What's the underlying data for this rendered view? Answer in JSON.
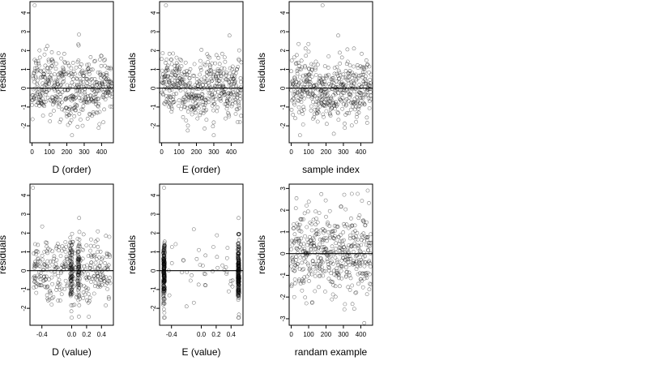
{
  "chart_data": [
    {
      "type": "scatter",
      "xlabel": "D (order)",
      "ylabel": "residuals",
      "xlim": [
        -12,
        468
      ],
      "ylim": [
        -2.9,
        4.6
      ],
      "xticks": [
        0,
        100,
        200,
        300,
        400
      ],
      "xtick_labels": [
        "0",
        "100",
        "200",
        "300",
        "400"
      ],
      "yticks": [
        -2,
        -1,
        0,
        1,
        2,
        3,
        4
      ],
      "ytick_labels": [
        "-2",
        "-1",
        "0",
        "1",
        "2",
        "3",
        "4"
      ],
      "hline": 0,
      "generator": {
        "kind": "index",
        "n": 460,
        "seed": 11
      },
      "outliers": [
        [
          15,
          4.4
        ],
        [
          270,
          2.85
        ],
        [
          230,
          -2.5
        ]
      ],
      "cluster": [
        [
          40,
          -0.6
        ],
        [
          45,
          -0.65
        ],
        [
          50,
          -0.7
        ],
        [
          55,
          -0.8
        ],
        [
          60,
          -0.85
        ],
        [
          65,
          -0.9
        ],
        [
          70,
          -0.95
        ]
      ]
    },
    {
      "type": "scatter",
      "xlabel": "E (order)",
      "ylabel": "residuals",
      "xlim": [
        -12,
        468
      ],
      "ylim": [
        -2.9,
        4.6
      ],
      "xticks": [
        0,
        100,
        200,
        300,
        400
      ],
      "xtick_labels": [
        "0",
        "100",
        "200",
        "300",
        "400"
      ],
      "yticks": [
        -2,
        -1,
        0,
        1,
        2,
        3,
        4
      ],
      "ytick_labels": [
        "-2",
        "-1",
        "0",
        "1",
        "2",
        "3",
        "4"
      ],
      "hline": 0,
      "generator": {
        "kind": "index",
        "n": 460,
        "seed": 23
      },
      "outliers": [
        [
          25,
          4.4
        ],
        [
          390,
          2.8
        ],
        [
          300,
          -2.5
        ]
      ],
      "cluster": [
        [
          30,
          -0.6
        ],
        [
          35,
          -0.7
        ],
        [
          40,
          -0.75
        ],
        [
          45,
          -0.8
        ],
        [
          50,
          -0.9
        ],
        [
          55,
          -1.0
        ],
        [
          60,
          -1.1
        ]
      ]
    },
    {
      "type": "scatter",
      "xlabel": "sample index",
      "ylabel": "residuals",
      "xlim": [
        -12,
        468
      ],
      "ylim": [
        -2.9,
        4.6
      ],
      "xticks": [
        0,
        100,
        200,
        300,
        400
      ],
      "xtick_labels": [
        "0",
        "100",
        "200",
        "300",
        "400"
      ],
      "yticks": [
        -2,
        -1,
        0,
        1,
        2,
        3,
        4
      ],
      "ytick_labels": [
        "-2",
        "-1",
        "0",
        "1",
        "2",
        "3",
        "4"
      ],
      "hline": 0,
      "generator": {
        "kind": "index",
        "n": 460,
        "seed": 37
      },
      "outliers": [
        [
          180,
          4.4
        ],
        [
          270,
          2.8
        ],
        [
          50,
          -2.5
        ]
      ],
      "cluster": [
        [
          170,
          -0.75
        ],
        [
          175,
          -0.8
        ],
        [
          180,
          -0.85
        ],
        [
          185,
          -0.9
        ],
        [
          190,
          -0.9
        ],
        [
          195,
          -0.95
        ]
      ]
    },
    {
      "type": "scatter",
      "xlabel": "D (value)",
      "ylabel": "residuals",
      "xlim": [
        -0.56,
        0.56
      ],
      "ylim": [
        -2.9,
        4.6
      ],
      "xticks": [
        -0.4,
        0.0,
        0.2,
        0.4
      ],
      "xtick_labels": [
        "-0.4",
        "0.0",
        "0.2",
        "0.4"
      ],
      "yticks": [
        -2,
        -1,
        0,
        1,
        2,
        3,
        4
      ],
      "ytick_labels": [
        "-2",
        "-1",
        "0",
        "1",
        "2",
        "3",
        "4"
      ],
      "hline": 0,
      "generator": {
        "kind": "value_d",
        "n": 460,
        "seed": 53
      },
      "outliers": [
        [
          -0.52,
          4.4
        ],
        [
          0.1,
          2.8
        ],
        [
          0.0,
          -2.5
        ]
      ],
      "cluster": [
        [
          -0.5,
          -0.6
        ],
        [
          -0.48,
          -0.65
        ],
        [
          -0.46,
          -0.7
        ],
        [
          -0.44,
          -0.75
        ],
        [
          -0.36,
          -0.85
        ],
        [
          -0.34,
          -0.9
        ]
      ]
    },
    {
      "type": "scatter",
      "xlabel": "E (value)",
      "ylabel": "residuals",
      "xlim": [
        -0.56,
        0.56
      ],
      "ylim": [
        -2.9,
        4.6
      ],
      "xticks": [
        -0.4,
        0.0,
        0.2,
        0.4
      ],
      "xtick_labels": [
        "-0.4",
        "0.0",
        "0.2",
        "0.4"
      ],
      "yticks": [
        -2,
        -1,
        0,
        1,
        2,
        3,
        4
      ],
      "ytick_labels": [
        "-2",
        "-1",
        "0",
        "1",
        "2",
        "3",
        "4"
      ],
      "hline": 0,
      "generator": {
        "kind": "value_e",
        "n": 460,
        "seed": 71
      },
      "outliers": [
        [
          -0.5,
          4.4
        ],
        [
          0.5,
          2.8
        ],
        [
          0.5,
          -2.5
        ],
        [
          -0.1,
          2.2
        ],
        [
          -0.1,
          -1.7
        ]
      ],
      "cluster": []
    },
    {
      "type": "scatter",
      "xlabel": "randam example",
      "ylabel": "residuals",
      "xlim": [
        -12,
        468
      ],
      "ylim": [
        -3.3,
        3.2
      ],
      "xticks": [
        0,
        100,
        200,
        300,
        400
      ],
      "xtick_labels": [
        "0",
        "100",
        "200",
        "300",
        "400"
      ],
      "yticks": [
        -3,
        -2,
        -1,
        0,
        1,
        2,
        3
      ],
      "ytick_labels": [
        "-3",
        "-2",
        "-1",
        "0",
        "1",
        "2",
        "3"
      ],
      "hline": 0,
      "generator": {
        "kind": "normal",
        "n": 460,
        "seed": 97
      },
      "outliers": [
        [
          440,
          2.9
        ],
        [
          420,
          -3.2
        ],
        [
          30,
          2.55
        ]
      ],
      "cluster": []
    }
  ]
}
